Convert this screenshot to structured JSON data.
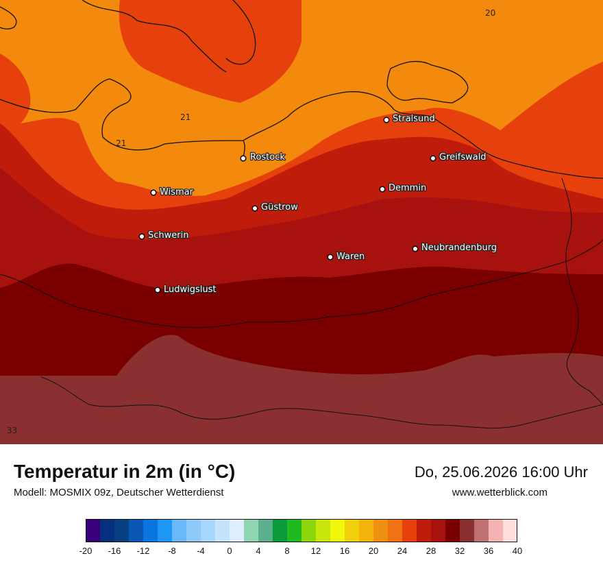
{
  "map": {
    "cities": [
      {
        "name": "Stralsund"
      },
      {
        "name": "Rostock"
      },
      {
        "name": "Greifswald"
      },
      {
        "name": "Demmin"
      },
      {
        "name": "Wismar"
      },
      {
        "name": "Güstrow"
      },
      {
        "name": "Schwerin"
      },
      {
        "name": "Neubrandenburg"
      },
      {
        "name": "Waren"
      },
      {
        "name": "Ludwigslust"
      }
    ],
    "contour_labels": [
      "20",
      "21",
      "21",
      "33"
    ]
  },
  "footer": {
    "title": "Temperatur in 2m (in °C)",
    "subtitle": "Modell: MOSMIX 09z, Deutscher Wetterdienst",
    "datetime": "Do, 25.06.2026 16:00 Uhr",
    "website": "www.wetterblick.com"
  },
  "legend": {
    "ticks": [
      "-20",
      "-16",
      "-12",
      "-8",
      "-4",
      "0",
      "4",
      "8",
      "12",
      "16",
      "20",
      "24",
      "28",
      "32",
      "36",
      "40"
    ],
    "colors": [
      "#3a007e",
      "#06307e",
      "#063f82",
      "#0a58b4",
      "#0a75e0",
      "#1e96f5",
      "#6ab8f8",
      "#8ec9fa",
      "#a9d6fb",
      "#c6e3fc",
      "#deeefd",
      "#8fd6b0",
      "#5bb08d",
      "#0a9a3a",
      "#22b820",
      "#8ed60c",
      "#c8e60c",
      "#f0f70a",
      "#f0cf0c",
      "#f3b30c",
      "#f09012",
      "#f07212",
      "#e6410c",
      "#bf1c0c",
      "#a8120e",
      "#7a0000",
      "#8a3030",
      "#bf7070",
      "#f5b2b2",
      "#ffdede"
    ]
  }
}
